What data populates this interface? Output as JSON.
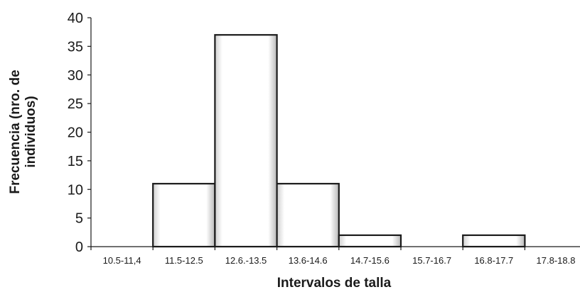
{
  "chart_data": {
    "type": "bar",
    "title": "",
    "xlabel": "Intervalos de talla",
    "ylabel_lines": [
      "Frecuencia (nro. de",
      "individuos)"
    ],
    "categories": [
      "10.5-11,4",
      "11.5-12.5",
      "12.6.-13.5",
      "13.6-14.6",
      "14.7-15.6",
      "15.7-16.7",
      "16.8-17.7",
      "17.8-18.8"
    ],
    "values": [
      0,
      11,
      37,
      11,
      2,
      0,
      2,
      0
    ],
    "ylim": [
      0,
      40
    ],
    "yticks": [
      0,
      5,
      10,
      15,
      20,
      25,
      30,
      35,
      40
    ],
    "grid": false,
    "legend": "none",
    "bar_fill": "#ffffff",
    "bar_edge": "#1a1a1a",
    "bar_shade": "#b8b8b8"
  }
}
